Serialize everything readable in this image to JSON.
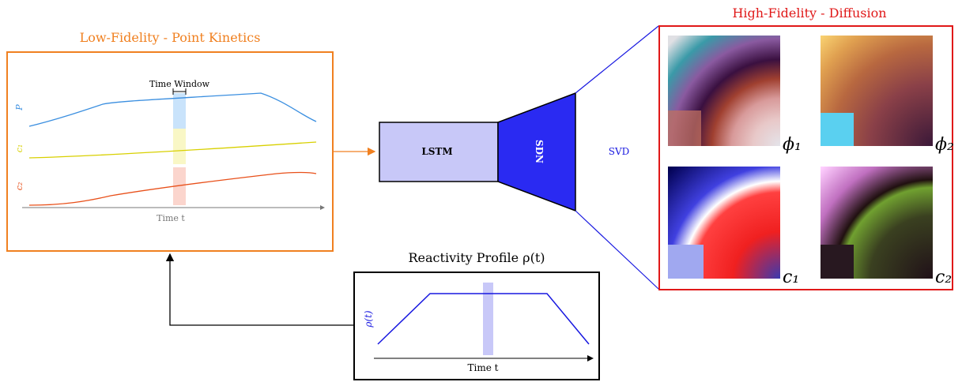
{
  "low_fidelity": {
    "title": "Low-Fidelity - Point Kinetics",
    "time_window_label": "Time Window",
    "x_axis_label": "Time t",
    "series": [
      {
        "name": "P",
        "color": "#3b8fe0"
      },
      {
        "name": "c₁",
        "color": "#d8d000"
      },
      {
        "name": "c₂",
        "color": "#e8501a"
      }
    ]
  },
  "network": {
    "lstm_label": "LSTM",
    "sdn_label": "SDN",
    "svd_label": "SVD"
  },
  "high_fidelity": {
    "title": "High-Fidelity - Diffusion",
    "fields": [
      {
        "name": "phi-1",
        "label": "ϕ₁"
      },
      {
        "name": "phi-2",
        "label": "ϕ₂"
      },
      {
        "name": "c-1",
        "label": "c₁"
      },
      {
        "name": "c-2",
        "label": "c₂"
      }
    ]
  },
  "reactivity": {
    "title": "Reactivity Profile ρ(t)",
    "y_axis_label": "ρ(t)",
    "x_axis_label": "Time t"
  },
  "colors": {
    "orange": "#f08020",
    "red": "#e01818",
    "blue": "#1818e0",
    "lstm_fill": "#c8c8f8",
    "sdn_fill": "#2a2af2"
  }
}
